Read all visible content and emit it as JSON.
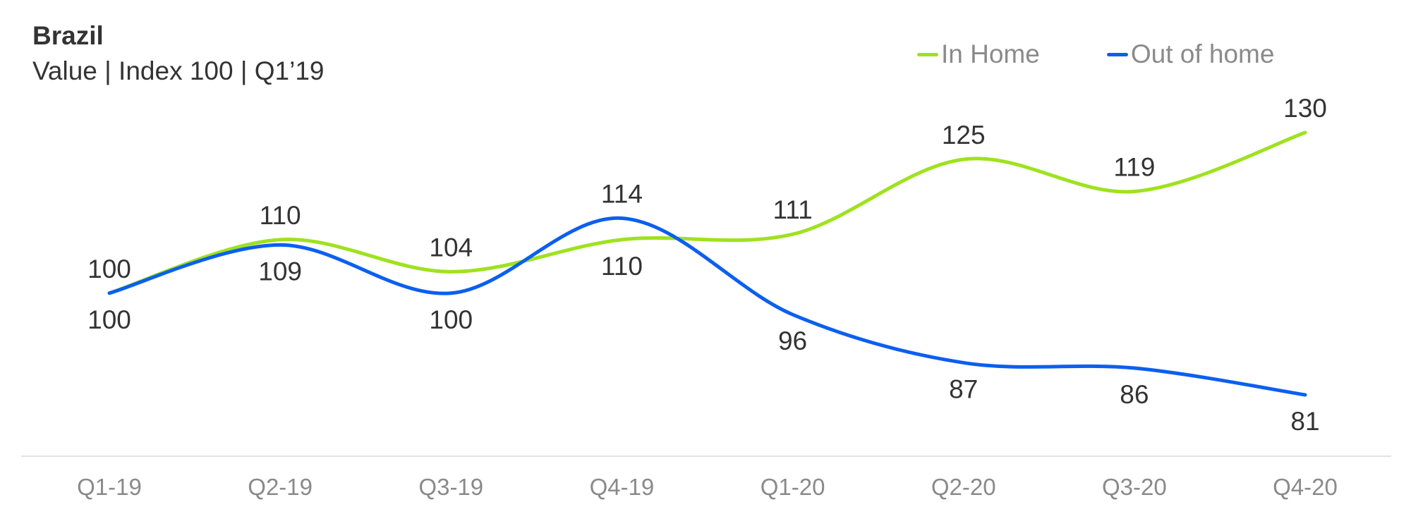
{
  "header": {
    "title": "Brazil",
    "subtitle": "Value | Index 100 | Q1’19"
  },
  "chart_data": {
    "type": "line",
    "title": "Brazil",
    "subtitle": "Value | Index 100 | Q1’19",
    "xlabel": "",
    "ylabel": "",
    "categories": [
      "Q1-19",
      "Q2-19",
      "Q3-19",
      "Q4-19",
      "Q1-20",
      "Q2-20",
      "Q3-20",
      "Q4-20"
    ],
    "series": [
      {
        "name": "In Home",
        "color": "#9ee21f",
        "values": [
          100,
          110,
          104,
          110,
          111,
          125,
          119,
          130
        ]
      },
      {
        "name": "Out of home",
        "color": "#0b5ff0",
        "values": [
          100,
          109,
          100,
          114,
          96,
          87,
          86,
          81
        ]
      }
    ],
    "grid": false,
    "legend": "top-right"
  }
}
